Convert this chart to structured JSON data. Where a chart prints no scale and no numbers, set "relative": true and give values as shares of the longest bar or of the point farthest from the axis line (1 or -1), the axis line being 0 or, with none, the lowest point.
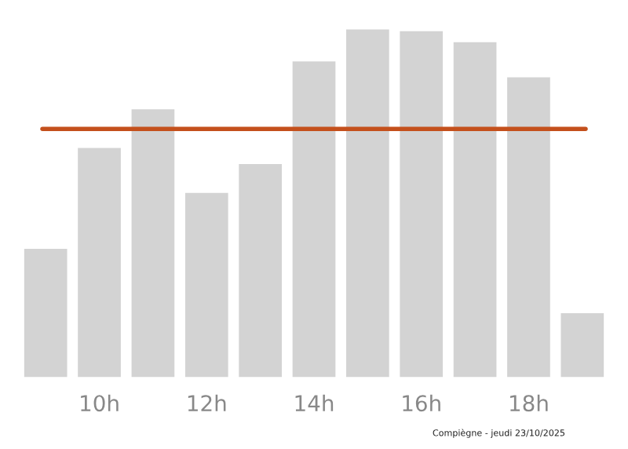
{
  "chart_data": {
    "type": "bar",
    "relative": true,
    "categories": [
      null,
      "10h",
      null,
      "12h",
      null,
      "14h",
      null,
      "16h",
      null,
      "18h",
      null
    ],
    "values": [
      0.369,
      0.659,
      0.77,
      0.53,
      0.613,
      0.908,
      1,
      0.995,
      0.963,
      0.862,
      0.184
    ],
    "color": "#d3d3d3",
    "ref_lines": [
      {
        "axis": "y",
        "value": 0.714,
        "color": "#c4501c",
        "line_style": "solid"
      }
    ],
    "annotations": [
      "Compiègne - jeudi 23/10/2025"
    ],
    "grid": false,
    "legend": false
  }
}
